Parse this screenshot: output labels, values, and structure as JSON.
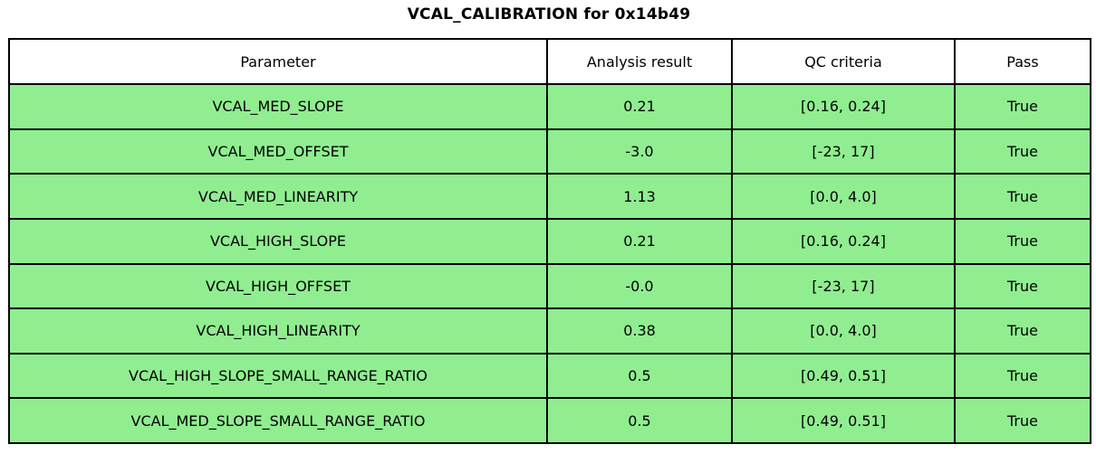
{
  "title": "VCAL_CALIBRATION for 0x14b49",
  "colors": {
    "row_bg": "#90EE90",
    "header_bg": "#FFFFFF",
    "border": "#000000",
    "text": "#000000"
  },
  "chart_data": {
    "type": "table",
    "title": "VCAL_CALIBRATION for 0x14b49",
    "columns": [
      "Parameter",
      "Analysis result",
      "QC criteria",
      "Pass"
    ],
    "rows": [
      [
        "VCAL_MED_SLOPE",
        "0.21",
        "[0.16, 0.24]",
        "True"
      ],
      [
        "VCAL_MED_OFFSET",
        "-3.0",
        "[-23, 17]",
        "True"
      ],
      [
        "VCAL_MED_LINEARITY",
        "1.13",
        "[0.0, 4.0]",
        "True"
      ],
      [
        "VCAL_HIGH_SLOPE",
        "0.21",
        "[0.16, 0.24]",
        "True"
      ],
      [
        "VCAL_HIGH_OFFSET",
        "-0.0",
        "[-23, 17]",
        "True"
      ],
      [
        "VCAL_HIGH_LINEARITY",
        "0.38",
        "[0.0, 4.0]",
        "True"
      ],
      [
        "VCAL_HIGH_SLOPE_SMALL_RANGE_RATIO",
        "0.5",
        "[0.49, 0.51]",
        "True"
      ],
      [
        "VCAL_MED_SLOPE_SMALL_RANGE_RATIO",
        "0.5",
        "[0.49, 0.51]",
        "True"
      ]
    ]
  }
}
